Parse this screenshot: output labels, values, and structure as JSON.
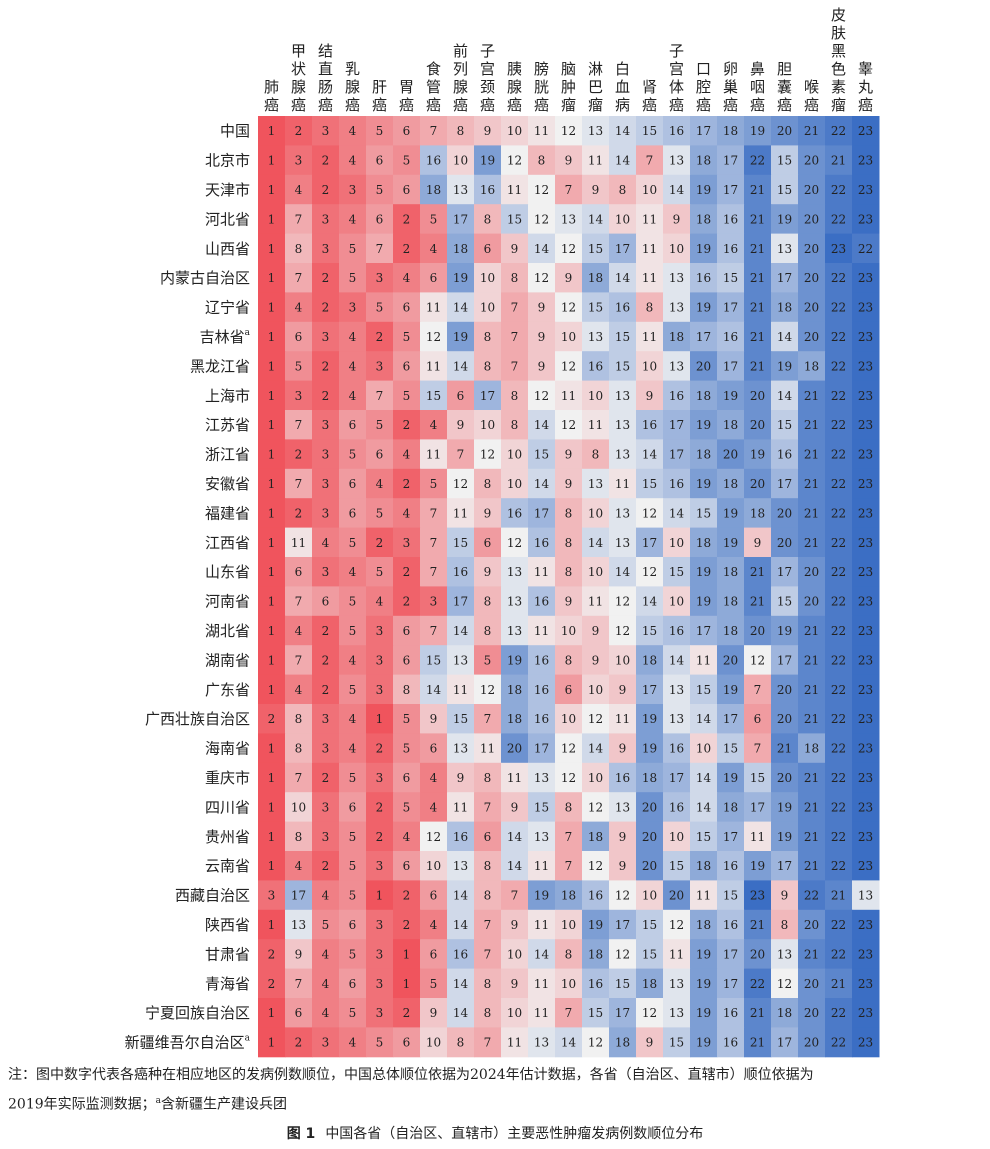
{
  "chart_data": {
    "type": "heatmap",
    "columns": [
      "肺癌",
      "甲状腺癌",
      "结直肠癌",
      "乳腺癌",
      "肝癌",
      "胃癌",
      "食管癌",
      "前列腺癌",
      "子宫颈癌",
      "胰腺癌",
      "膀胱癌",
      "脑肿瘤",
      "淋巴瘤",
      "白血病",
      "肾癌",
      "子宫体癌",
      "口腔癌",
      "卵巢癌",
      "鼻咽癌",
      "胆囊癌",
      "喉癌",
      "皮肤黑色素瘤",
      "睾丸癌"
    ],
    "rows": [
      "中国",
      "北京市",
      "天津市",
      "河北省",
      "山西省",
      "内蒙古自治区",
      "辽宁省",
      "吉林省",
      "黑龙江省",
      "上海市",
      "江苏省",
      "浙江省",
      "安徽省",
      "福建省",
      "江西省",
      "山东省",
      "河南省",
      "湖北省",
      "湖南省",
      "广东省",
      "广西壮族自治区",
      "海南省",
      "重庆市",
      "四川省",
      "贵州省",
      "云南省",
      "西藏自治区",
      "陕西省",
      "甘肃省",
      "青海省",
      "宁夏回族自治区",
      "新疆维吾尔自治区"
    ],
    "row_superscripts": {
      "吉林省": "a",
      "新疆维吾尔自治区": "a"
    },
    "values": [
      [
        1,
        2,
        3,
        4,
        5,
        6,
        7,
        8,
        9,
        10,
        11,
        12,
        13,
        14,
        15,
        16,
        17,
        18,
        19,
        20,
        21,
        22,
        23
      ],
      [
        1,
        3,
        2,
        4,
        6,
        5,
        16,
        10,
        19,
        12,
        8,
        9,
        11,
        14,
        7,
        13,
        18,
        17,
        22,
        15,
        20,
        21,
        23
      ],
      [
        1,
        4,
        2,
        3,
        5,
        6,
        18,
        13,
        16,
        11,
        12,
        7,
        9,
        8,
        10,
        14,
        19,
        17,
        21,
        15,
        20,
        22,
        23
      ],
      [
        1,
        7,
        3,
        4,
        6,
        2,
        5,
        17,
        8,
        15,
        12,
        13,
        14,
        10,
        11,
        9,
        18,
        16,
        21,
        19,
        20,
        22,
        23
      ],
      [
        1,
        8,
        3,
        5,
        7,
        2,
        4,
        18,
        6,
        9,
        14,
        12,
        15,
        17,
        11,
        10,
        19,
        16,
        21,
        13,
        20,
        23,
        22
      ],
      [
        1,
        7,
        2,
        5,
        3,
        4,
        6,
        19,
        10,
        8,
        12,
        9,
        18,
        14,
        11,
        13,
        16,
        15,
        21,
        17,
        20,
        22,
        23
      ],
      [
        1,
        4,
        2,
        3,
        5,
        6,
        11,
        14,
        10,
        7,
        9,
        12,
        15,
        16,
        8,
        13,
        19,
        17,
        21,
        18,
        20,
        22,
        23
      ],
      [
        1,
        6,
        3,
        4,
        2,
        5,
        12,
        19,
        8,
        7,
        9,
        10,
        13,
        15,
        11,
        18,
        17,
        16,
        21,
        14,
        20,
        22,
        23
      ],
      [
        1,
        5,
        2,
        4,
        3,
        6,
        11,
        14,
        8,
        7,
        9,
        12,
        16,
        15,
        10,
        13,
        20,
        17,
        21,
        19,
        18,
        22,
        23
      ],
      [
        1,
        3,
        2,
        4,
        7,
        5,
        15,
        6,
        17,
        8,
        12,
        11,
        10,
        13,
        9,
        16,
        18,
        19,
        20,
        14,
        21,
        22,
        23
      ],
      [
        1,
        7,
        3,
        6,
        5,
        2,
        4,
        9,
        10,
        8,
        14,
        12,
        11,
        13,
        16,
        17,
        19,
        18,
        20,
        15,
        21,
        22,
        23
      ],
      [
        1,
        2,
        3,
        5,
        6,
        4,
        11,
        7,
        12,
        10,
        15,
        9,
        8,
        13,
        14,
        17,
        18,
        20,
        19,
        16,
        21,
        22,
        23
      ],
      [
        1,
        7,
        3,
        6,
        4,
        2,
        5,
        12,
        8,
        10,
        14,
        9,
        13,
        11,
        15,
        16,
        19,
        18,
        20,
        17,
        21,
        22,
        23
      ],
      [
        1,
        2,
        3,
        6,
        5,
        4,
        7,
        11,
        9,
        16,
        17,
        8,
        10,
        13,
        12,
        14,
        15,
        19,
        18,
        20,
        21,
        22,
        23
      ],
      [
        1,
        11,
        4,
        5,
        2,
        3,
        7,
        15,
        6,
        12,
        16,
        8,
        14,
        13,
        17,
        10,
        18,
        19,
        9,
        20,
        21,
        22,
        23
      ],
      [
        1,
        6,
        3,
        4,
        5,
        2,
        7,
        16,
        9,
        13,
        11,
        8,
        10,
        14,
        12,
        15,
        19,
        18,
        21,
        17,
        20,
        22,
        23
      ],
      [
        1,
        7,
        6,
        5,
        4,
        2,
        3,
        17,
        8,
        13,
        16,
        9,
        11,
        12,
        14,
        10,
        19,
        18,
        21,
        15,
        20,
        22,
        23
      ],
      [
        1,
        4,
        2,
        5,
        3,
        6,
        7,
        14,
        8,
        13,
        11,
        10,
        9,
        12,
        15,
        16,
        17,
        18,
        20,
        19,
        21,
        22,
        23
      ],
      [
        1,
        7,
        2,
        4,
        3,
        6,
        15,
        13,
        5,
        19,
        16,
        8,
        9,
        10,
        18,
        14,
        11,
        20,
        12,
        17,
        21,
        22,
        23
      ],
      [
        1,
        4,
        2,
        5,
        3,
        8,
        14,
        11,
        12,
        18,
        16,
        6,
        10,
        9,
        17,
        13,
        15,
        19,
        7,
        20,
        21,
        22,
        23
      ],
      [
        2,
        8,
        3,
        4,
        1,
        5,
        9,
        15,
        7,
        18,
        16,
        10,
        12,
        11,
        19,
        13,
        14,
        17,
        6,
        20,
        21,
        22,
        23
      ],
      [
        1,
        8,
        3,
        4,
        2,
        5,
        6,
        13,
        11,
        20,
        17,
        12,
        14,
        9,
        19,
        16,
        10,
        15,
        7,
        21,
        18,
        22,
        23
      ],
      [
        1,
        7,
        2,
        5,
        3,
        6,
        4,
        9,
        8,
        11,
        13,
        12,
        10,
        16,
        18,
        17,
        14,
        19,
        15,
        20,
        21,
        22,
        23
      ],
      [
        1,
        10,
        3,
        6,
        2,
        5,
        4,
        11,
        7,
        9,
        15,
        8,
        12,
        13,
        20,
        16,
        14,
        18,
        17,
        19,
        21,
        22,
        23
      ],
      [
        1,
        8,
        3,
        5,
        2,
        4,
        12,
        16,
        6,
        14,
        13,
        7,
        18,
        9,
        20,
        10,
        15,
        17,
        11,
        19,
        21,
        22,
        23
      ],
      [
        1,
        4,
        2,
        5,
        3,
        6,
        10,
        13,
        8,
        14,
        11,
        7,
        12,
        9,
        20,
        15,
        18,
        16,
        19,
        17,
        21,
        22,
        23
      ],
      [
        3,
        17,
        4,
        5,
        1,
        2,
        6,
        14,
        8,
        7,
        19,
        18,
        16,
        12,
        10,
        20,
        11,
        15,
        23,
        9,
        22,
        21,
        13
      ],
      [
        1,
        13,
        5,
        6,
        3,
        2,
        4,
        14,
        7,
        9,
        11,
        10,
        19,
        17,
        15,
        12,
        18,
        16,
        21,
        8,
        20,
        22,
        23
      ],
      [
        2,
        9,
        4,
        5,
        3,
        1,
        6,
        16,
        7,
        10,
        14,
        8,
        18,
        12,
        15,
        11,
        19,
        17,
        20,
        13,
        21,
        22,
        23
      ],
      [
        2,
        7,
        4,
        6,
        3,
        1,
        5,
        14,
        8,
        9,
        11,
        10,
        16,
        15,
        18,
        13,
        19,
        17,
        22,
        12,
        20,
        21,
        23
      ],
      [
        1,
        6,
        4,
        5,
        3,
        2,
        9,
        14,
        8,
        10,
        11,
        7,
        15,
        17,
        12,
        13,
        19,
        16,
        21,
        18,
        20,
        22,
        23
      ],
      [
        1,
        2,
        3,
        4,
        5,
        6,
        10,
        8,
        7,
        11,
        13,
        14,
        12,
        18,
        9,
        15,
        19,
        16,
        21,
        17,
        20,
        22,
        23
      ]
    ],
    "color_scale": {
      "min": 1,
      "max": 23,
      "low_color": "#f0545d",
      "mid_color": "#f1f1f1",
      "high_color": "#3b6ec4"
    }
  },
  "note": {
    "prefix": "注：图中数字代表各癌种在相应地区的发病例数顺位，中国总体顺位依据为",
    "year1": "2024",
    "mid": "年估计数据，各省（自治区、直辖市）顺位依据为",
    "year2": "2019",
    "suffix": "年实际监测数据；",
    "sup": "a",
    "tail": "含新疆生产建设兵团"
  },
  "caption": {
    "label": "图 1",
    "text": "中国各省（自治区、直辖市）主要恶性肿瘤发病例数顺位分布"
  }
}
